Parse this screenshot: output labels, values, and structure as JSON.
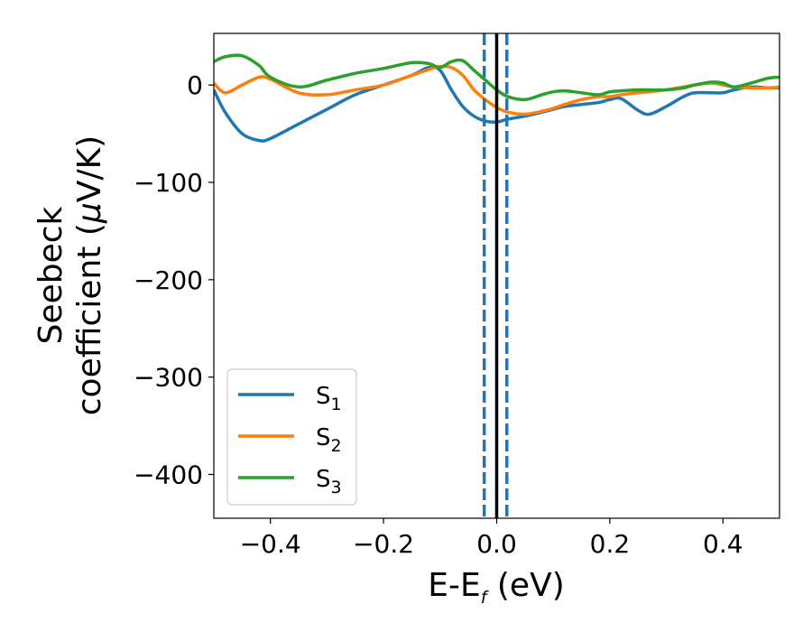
{
  "chart_data": {
    "type": "line",
    "xlim": [
      -0.5,
      0.5
    ],
    "ylim": [
      -445,
      53
    ],
    "x_ticks": [
      -0.4,
      -0.2,
      0.0,
      0.2,
      0.4
    ],
    "x_tick_labels": [
      "−0.4",
      "−0.2",
      "0.0",
      "0.2",
      "0.4"
    ],
    "y_ticks": [
      0,
      -100,
      -200,
      -300,
      -400
    ],
    "y_tick_labels": [
      "0",
      "−100",
      "−200",
      "−300",
      "−400"
    ],
    "xlabel": {
      "main": "E-E",
      "sub": "f",
      "unit": " (eV)"
    },
    "ylabel": {
      "line1": "Seebeck",
      "line2_pre": "coefficient  (",
      "line2_mu": "μ",
      "line2_post": "V/K)"
    },
    "legend_position": "lower-left",
    "vertical_lines": [
      {
        "x": -0.022,
        "style": "dashed",
        "color": "#1f77b4"
      },
      {
        "x": 0.0,
        "style": "solid",
        "color": "#000000"
      },
      {
        "x": 0.018,
        "style": "dashed",
        "color": "#1f77b4"
      }
    ],
    "x": [
      -0.5,
      -0.48,
      -0.45,
      -0.42,
      -0.4,
      -0.35,
      -0.3,
      -0.25,
      -0.2,
      -0.15,
      -0.12,
      -0.1,
      -0.08,
      -0.06,
      -0.04,
      -0.02,
      0.0,
      0.02,
      0.05,
      0.08,
      0.1,
      0.12,
      0.15,
      0.18,
      0.2,
      0.22,
      0.25,
      0.27,
      0.3,
      0.33,
      0.35,
      0.38,
      0.4,
      0.42,
      0.45,
      0.48,
      0.5
    ],
    "series": [
      {
        "name": "S",
        "sub": "1",
        "color": "#1f77b4",
        "values": [
          -5,
          -28,
          -50,
          -57,
          -55,
          -40,
          -25,
          -10,
          0,
          10,
          18,
          15,
          -5,
          -22,
          -32,
          -37,
          -38,
          -35,
          -32,
          -28,
          -25,
          -22,
          -20,
          -18,
          -15,
          -14,
          -26,
          -30,
          -22,
          -12,
          -8,
          -8,
          -8,
          -5,
          -2,
          -3,
          -3
        ]
      },
      {
        "name": "S",
        "sub": "2",
        "color": "#ff7f0e",
        "values": [
          2,
          -8,
          0,
          8,
          6,
          -8,
          -10,
          -5,
          0,
          10,
          16,
          19,
          18,
          10,
          -5,
          -15,
          -23,
          -28,
          -30,
          -27,
          -24,
          -20,
          -15,
          -12,
          -12,
          -10,
          -8,
          -7,
          -5,
          -2,
          0,
          2,
          0,
          -2,
          -3,
          -3,
          -2
        ]
      },
      {
        "name": "S",
        "sub": "3",
        "color": "#2ca02c",
        "values": [
          24,
          29,
          30,
          20,
          8,
          -2,
          5,
          12,
          17,
          23,
          22,
          18,
          24,
          25,
          15,
          5,
          -5,
          -12,
          -15,
          -10,
          -7,
          -6,
          -8,
          -10,
          -7,
          -6,
          -5,
          -5,
          -5,
          -3,
          0,
          3,
          2,
          -2,
          2,
          7,
          8
        ]
      }
    ]
  }
}
